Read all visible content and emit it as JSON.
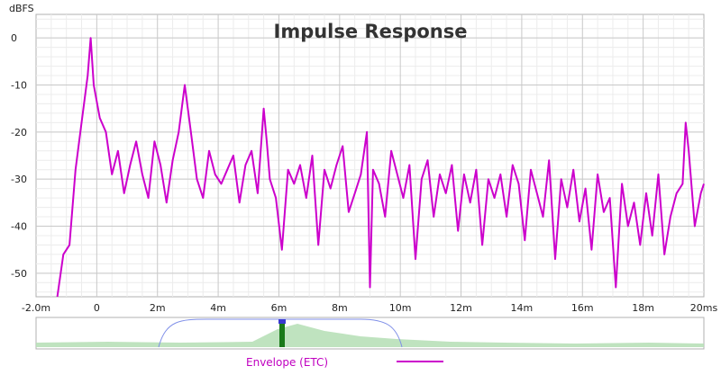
{
  "chart_data": {
    "type": "line",
    "title": "Impulse Response",
    "ylabel": "dBFS",
    "xlabel": "",
    "xlim": [
      -2.0,
      20
    ],
    "ylim": [
      -55,
      5
    ],
    "x_ticks": [
      {
        "value": -2,
        "label": "-2.0m"
      },
      {
        "value": 0,
        "label": "0"
      },
      {
        "value": 2,
        "label": "2m"
      },
      {
        "value": 4,
        "label": "4m"
      },
      {
        "value": 6,
        "label": "6m"
      },
      {
        "value": 8,
        "label": "8m"
      },
      {
        "value": 10,
        "label": "10m"
      },
      {
        "value": 12,
        "label": "12m"
      },
      {
        "value": 14,
        "label": "14m"
      },
      {
        "value": 16,
        "label": "16m"
      },
      {
        "value": 18,
        "label": "18m"
      },
      {
        "value": 20,
        "label": "20ms"
      }
    ],
    "y_ticks": [
      {
        "value": 0,
        "label": "0"
      },
      {
        "value": -10,
        "label": "-10"
      },
      {
        "value": -20,
        "label": "-20"
      },
      {
        "value": -30,
        "label": "-30"
      },
      {
        "value": -40,
        "label": "-40"
      },
      {
        "value": -50,
        "label": "-50"
      }
    ],
    "grid": true,
    "legend_position": "bottom",
    "series": [
      {
        "name": "Envelope (ETC)",
        "color": "#cc00cc",
        "x": [
          -1.3,
          -1.1,
          -0.9,
          -0.7,
          -0.5,
          -0.3,
          -0.2,
          -0.1,
          0.1,
          0.3,
          0.5,
          0.7,
          0.9,
          1.1,
          1.3,
          1.5,
          1.7,
          1.9,
          2.1,
          2.3,
          2.5,
          2.7,
          2.9,
          3.0,
          3.1,
          3.3,
          3.5,
          3.7,
          3.9,
          4.1,
          4.3,
          4.5,
          4.7,
          4.9,
          5.1,
          5.3,
          5.5,
          5.6,
          5.7,
          5.9,
          6.1,
          6.3,
          6.5,
          6.7,
          6.9,
          7.1,
          7.3,
          7.5,
          7.7,
          7.9,
          8.1,
          8.3,
          8.5,
          8.7,
          8.9,
          9.0,
          9.1,
          9.3,
          9.5,
          9.7,
          9.9,
          10.1,
          10.3,
          10.5,
          10.7,
          10.9,
          11.1,
          11.3,
          11.5,
          11.7,
          11.9,
          12.1,
          12.3,
          12.5,
          12.7,
          12.9,
          13.1,
          13.3,
          13.5,
          13.7,
          13.9,
          14.1,
          14.3,
          14.5,
          14.7,
          14.9,
          15.1,
          15.3,
          15.5,
          15.7,
          15.9,
          16.1,
          16.3,
          16.5,
          16.7,
          16.9,
          17.1,
          17.3,
          17.5,
          17.7,
          17.9,
          18.1,
          18.3,
          18.5,
          18.7,
          18.9,
          19.1,
          19.3,
          19.4,
          19.5,
          19.7,
          19.9,
          20.0
        ],
        "values": [
          -55,
          -46,
          -44,
          -28,
          -18,
          -8,
          0,
          -10,
          -17,
          -20,
          -29,
          -24,
          -33,
          -27,
          -22,
          -29,
          -34,
          -22,
          -27,
          -35,
          -26,
          -20,
          -10,
          -15,
          -20,
          -30,
          -34,
          -24,
          -29,
          -31,
          -28,
          -25,
          -35,
          -27,
          -24,
          -33,
          -15,
          -22,
          -30,
          -34,
          -45,
          -28,
          -31,
          -27,
          -34,
          -25,
          -44,
          -28,
          -32,
          -27,
          -23,
          -37,
          -33,
          -29,
          -20,
          -53,
          -28,
          -31,
          -38,
          -24,
          -29,
          -34,
          -27,
          -47,
          -30,
          -26,
          -38,
          -29,
          -33,
          -27,
          -41,
          -29,
          -35,
          -28,
          -44,
          -30,
          -34,
          -29,
          -38,
          -27,
          -31,
          -43,
          -28,
          -33,
          -38,
          -26,
          -47,
          -30,
          -36,
          -28,
          -39,
          -32,
          -45,
          -29,
          -37,
          -34,
          -53,
          -31,
          -40,
          -35,
          -44,
          -33,
          -42,
          -29,
          -46,
          -38,
          -33,
          -31,
          -18,
          -24,
          -40,
          -33,
          -31
        ]
      }
    ]
  },
  "overview": {
    "legend_label": "Envelope (ETC)"
  }
}
